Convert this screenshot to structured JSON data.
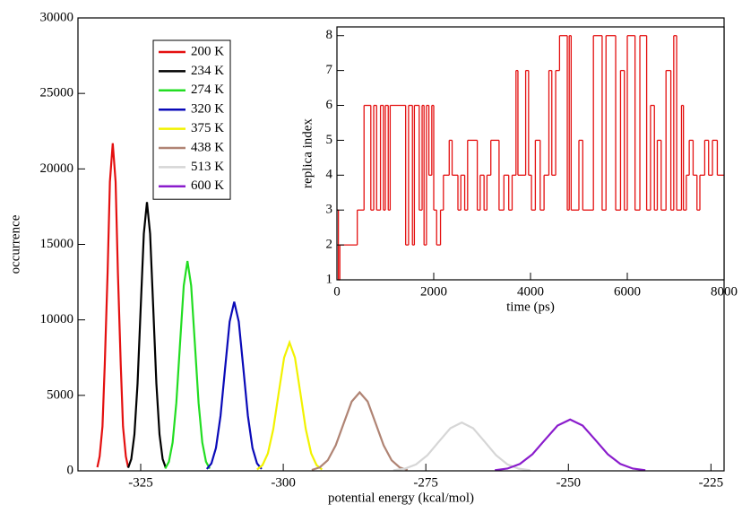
{
  "chart_data": [
    {
      "type": "line",
      "xlabel": "potential energy (kcal/mol)",
      "ylabel": "occurrence",
      "xlim": [
        -336,
        -222.7
      ],
      "xticks": [
        -325,
        -300,
        -275,
        -250,
        -225
      ],
      "ylim": [
        0,
        30000
      ],
      "yticks": [
        0,
        5000,
        10000,
        15000,
        20000,
        25000,
        30000
      ],
      "legend": "upper left",
      "series": [
        {
          "name": "200 K",
          "color": "#e41010",
          "x": [
            -332.6,
            -332.2,
            -331.7,
            -331.3,
            -330.8,
            -330.4,
            -329.9,
            -329.4,
            -329.0,
            -328.5,
            -328.1,
            -327.6,
            -327.2
          ],
          "values": [
            240,
            950,
            2940,
            7050,
            13160,
            19150,
            21700,
            19150,
            13160,
            7050,
            2940,
            950,
            240
          ]
        },
        {
          "name": "234 K",
          "color": "#000000",
          "x": [
            -327.2,
            -326.65,
            -326.1,
            -325.55,
            -325.0,
            -324.45,
            -323.9,
            -323.35,
            -322.8,
            -322.25,
            -321.7,
            -321.15,
            -320.6
          ],
          "values": [
            200,
            780,
            2410,
            5780,
            10800,
            15710,
            17800,
            15710,
            10800,
            5780,
            2410,
            780,
            200
          ]
        },
        {
          "name": "274 K",
          "color": "#22dd22",
          "x": [
            -320.7,
            -320.05,
            -319.4,
            -318.75,
            -318.1,
            -317.45,
            -316.8,
            -316.15,
            -315.5,
            -314.85,
            -314.2,
            -313.55,
            -312.9
          ],
          "values": [
            150,
            610,
            1880,
            4510,
            8430,
            12270,
            13900,
            12270,
            8430,
            4510,
            1880,
            610,
            150
          ]
        },
        {
          "name": "320 K",
          "color": "#0a0ab8",
          "x": [
            -313.4,
            -312.6,
            -311.8,
            -311.0,
            -310.2,
            -309.4,
            -308.6,
            -307.8,
            -307.0,
            -306.2,
            -305.4,
            -304.6,
            -303.8
          ],
          "values": [
            120,
            490,
            1520,
            3640,
            6790,
            9880,
            11200,
            9880,
            6790,
            3640,
            1520,
            490,
            120
          ]
        },
        {
          "name": "375 K",
          "color": "#f2f200",
          "x": [
            -304.6,
            -303.65,
            -302.7,
            -301.75,
            -300.8,
            -299.85,
            -298.9,
            -297.95,
            -297.0,
            -296.05,
            -295.1,
            -294.15,
            -293.2
          ],
          "values": [
            90,
            370,
            1150,
            2760,
            5160,
            7500,
            8500,
            7500,
            5160,
            2760,
            1150,
            370,
            90
          ]
        },
        {
          "name": "438 K",
          "color": "#b08474",
          "x": [
            -295.0,
            -293.6,
            -292.2,
            -290.8,
            -289.4,
            -288.0,
            -286.6,
            -285.2,
            -283.8,
            -282.4,
            -281.0,
            -279.6,
            -278.2
          ],
          "values": [
            60,
            230,
            700,
            1690,
            3150,
            4590,
            5200,
            4590,
            3150,
            1690,
            700,
            230,
            60
          ]
        },
        {
          "name": "513 K",
          "color": "#d6d6d6",
          "x": [
            -280.7,
            -278.7,
            -276.7,
            -274.7,
            -272.7,
            -270.7,
            -268.7,
            -266.7,
            -264.7,
            -262.7,
            -260.7,
            -258.7,
            -256.7
          ],
          "values": [
            40,
            140,
            430,
            1040,
            1940,
            2820,
            3200,
            2820,
            1940,
            1040,
            430,
            140,
            40
          ]
        },
        {
          "name": "600 K",
          "color": "#8a1ccc",
          "x": [
            -262.9,
            -260.7,
            -258.5,
            -256.3,
            -254.1,
            -251.9,
            -249.7,
            -247.5,
            -245.3,
            -243.1,
            -240.9,
            -238.7,
            -236.5
          ],
          "values": [
            40,
            150,
            460,
            1100,
            2060,
            3000,
            3400,
            3000,
            2060,
            1100,
            460,
            150,
            40
          ]
        }
      ]
    },
    {
      "type": "step",
      "xlabel": "time (ps)",
      "ylabel": "replica index",
      "color": "#e41010",
      "xlim": [
        0,
        8000
      ],
      "xticks": [
        0,
        2000,
        4000,
        6000,
        8000
      ],
      "ylim": [
        1,
        8.25
      ],
      "yticks": [
        1,
        2,
        3,
        4,
        5,
        6,
        7,
        8
      ],
      "x": [
        0,
        30,
        60,
        420,
        560,
        700,
        760,
        820,
        900,
        960,
        1000,
        1060,
        1100,
        1420,
        1480,
        1560,
        1600,
        1700,
        1760,
        1800,
        1850,
        1900,
        1960,
        2000,
        2060,
        2140,
        2200,
        2320,
        2380,
        2500,
        2560,
        2640,
        2700,
        2900,
        2960,
        3040,
        3100,
        3180,
        3350,
        3450,
        3550,
        3620,
        3700,
        3740,
        3900,
        3960,
        4020,
        4100,
        4200,
        4280,
        4380,
        4440,
        4520,
        4600,
        4760,
        4800,
        4840,
        5000,
        5080,
        5300,
        5480,
        5560,
        5760,
        5860,
        5940,
        6000,
        6160,
        6260,
        6400,
        6480,
        6560,
        6620,
        6700,
        6800,
        6900,
        6960,
        7020,
        7120,
        7160,
        7220,
        7280,
        7360,
        7440,
        7500,
        7600,
        7680,
        7760,
        7860,
        8000
      ],
      "values": [
        3,
        1,
        2,
        3,
        6,
        3,
        6,
        3,
        6,
        3,
        6,
        3,
        6,
        2,
        6,
        2,
        6,
        3,
        6,
        2,
        6,
        4,
        6,
        3,
        2,
        3,
        4,
        5,
        4,
        3,
        4,
        3,
        5,
        3,
        4,
        3,
        4,
        5,
        3,
        4,
        3,
        4,
        7,
        4,
        7,
        4,
        3,
        5,
        3,
        4,
        7,
        4,
        7,
        8,
        3,
        8,
        3,
        5,
        3,
        8,
        3,
        8,
        3,
        7,
        3,
        8,
        3,
        8,
        3,
        6,
        3,
        5,
        3,
        7,
        3,
        8,
        3,
        6,
        3,
        4,
        5,
        4,
        3,
        4,
        5,
        4,
        5,
        4,
        4
      ]
    }
  ]
}
